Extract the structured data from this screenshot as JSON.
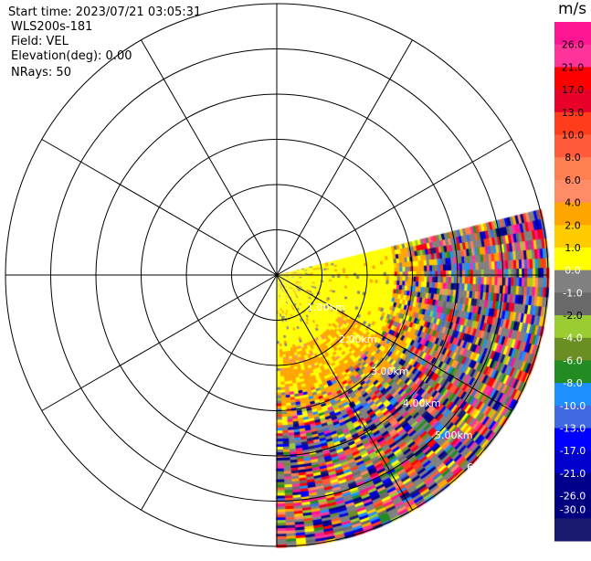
{
  "header": {
    "start_time": "Start time: 2023/07/21 03:05:31",
    "instrument": "WLS200s-181",
    "field": "Field: VEL",
    "elevation": "Elevation(deg): 0.00",
    "nrays": "NRays: 50"
  },
  "chart_data": {
    "type": "heatmap",
    "projection": "polar PPI",
    "field": "VEL",
    "units": "m/s",
    "azimuth_range_deg": [
      76,
      180
    ],
    "n_rays": 50,
    "max_range_km": 6,
    "range_rings_km": [
      1,
      2,
      3,
      4,
      5,
      6
    ],
    "ring_labels": [
      "1.00km",
      "2.00km",
      "3.00km",
      "4.00km",
      "5.00km",
      "6"
    ],
    "spoke_step_deg": 30,
    "colorbar": {
      "title": "m/s",
      "tick_labels": [
        "26.0",
        "21.0",
        "17.0",
        "13.0",
        "10.0",
        "8.0",
        "6.0",
        "4.0",
        "2.0",
        "1.0",
        "0.0",
        "-1.0",
        "-2.0",
        "-4.0",
        "-6.0",
        "-8.0",
        "-10.0",
        "-13.0",
        "-17.0",
        "-21.0",
        "-26.0",
        "-30.0"
      ],
      "colors": [
        "#ff1493",
        "#ff3399",
        "#ff0000",
        "#e8002a",
        "#ff3d1a",
        "#ff5a3a",
        "#ff7f50",
        "#ff8c66",
        "#ffa500",
        "#ffcc00",
        "#ffff00",
        "#808080",
        "#696969",
        "#9acd32",
        "#6b8e23",
        "#228b22",
        "#1e90ff",
        "#4169e1",
        "#0000ff",
        "#0000cd",
        "#00008b",
        "#000080",
        "#191970"
      ]
    },
    "pattern": "near range (< about 3 km) mostly 2 to 4 m/s (yellow) with about 1 m/s (orange) bands; far range noisy values spanning the full scale"
  }
}
